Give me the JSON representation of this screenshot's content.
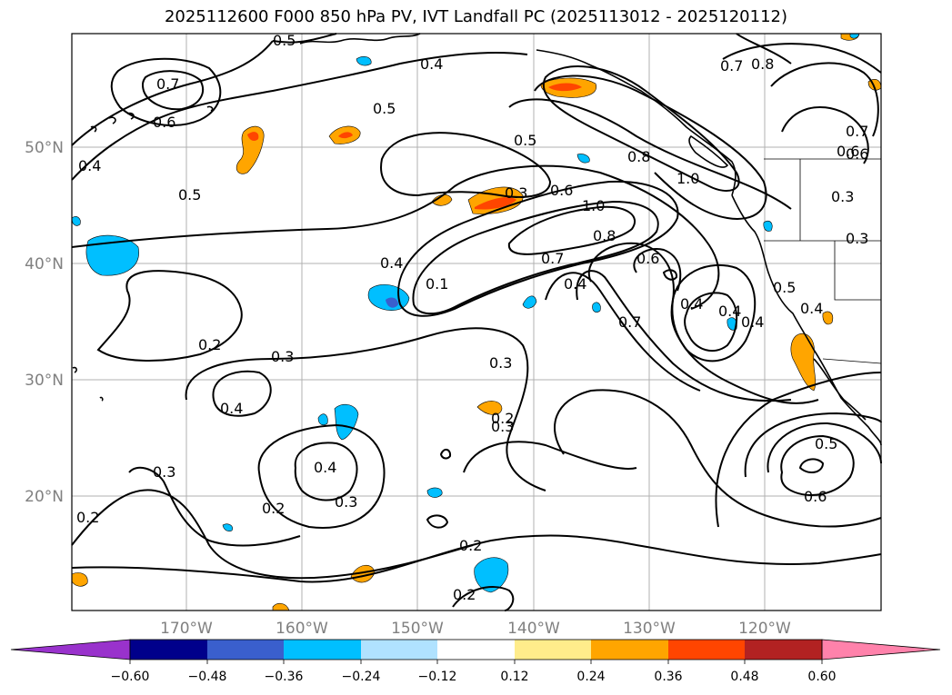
{
  "title": "2025112600 F000 850 hPa PV, IVT Landfall PC (2025113012 - 2025120112)",
  "lat_labels": [
    "50°N",
    "40°N",
    "30°N",
    "20°N"
  ],
  "lon_labels": [
    "170°W",
    "160°W",
    "150°W",
    "140°W",
    "130°W",
    "120°W"
  ],
  "colorbar": {
    "colors": [
      "#9932cc",
      "#00008b",
      "#3a5fcd",
      "#00bfff",
      "#b0e2ff",
      "#ffffff",
      "#ffec8b",
      "#ffa500",
      "#ff4500",
      "#b22222",
      "#ff82ab"
    ],
    "tick_labels": [
      "−0.60",
      "−0.48",
      "−0.36",
      "−0.24",
      "−0.12",
      "0.12",
      "0.24",
      "0.36",
      "0.48",
      "0.60"
    ]
  },
  "contour_labels": [
    "0.7",
    "0.6",
    "0.4",
    "0.5",
    "0.4",
    "0.5",
    "0.5",
    "0.3",
    "0.6",
    "1.0",
    "0.8",
    "0.7",
    "0.8",
    "0.8",
    "1.0",
    "0.7",
    "0.6",
    "0.4",
    "0.3",
    "0.4",
    "0.1",
    "0.6",
    "0.4",
    "0.7",
    "0.4",
    "0.5",
    "0.4",
    "0.2",
    "0.3",
    "0.4",
    "0.3",
    "0.2",
    "0.4",
    "0.3",
    "0.3",
    "0.2",
    "0.2",
    "0.2",
    "0.2",
    "0.5",
    "0.6",
    "0.5",
    "0.7",
    "0.6",
    "0.3",
    "0.3",
    "0.4"
  ]
}
